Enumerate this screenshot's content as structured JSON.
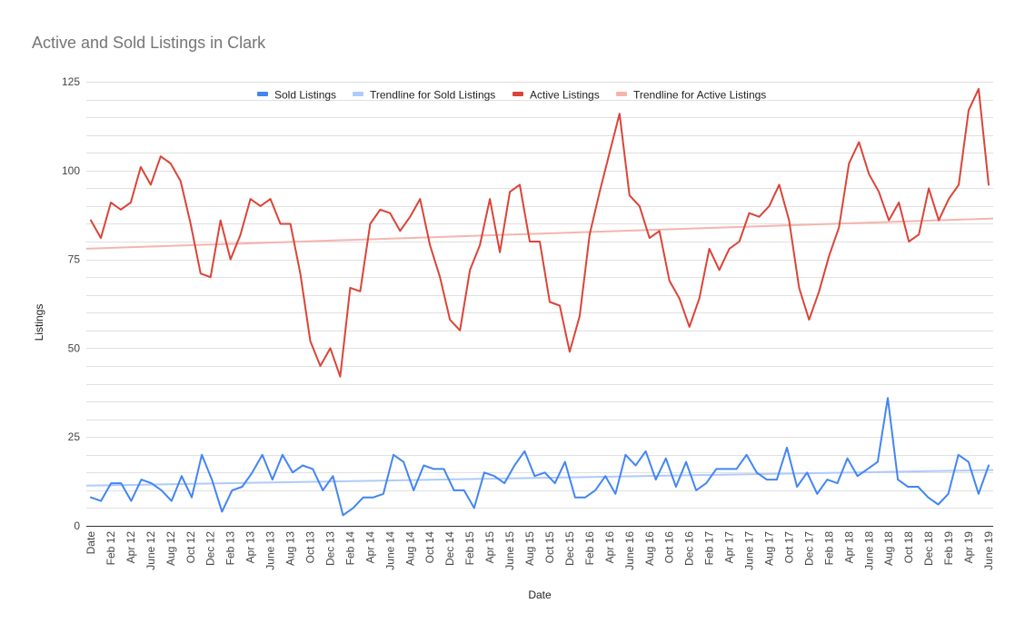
{
  "chart_data": {
    "type": "line",
    "title": "Active and Sold Listings in Clark",
    "xlabel": "Date",
    "ylabel": "Listings",
    "ylim": [
      0,
      125
    ],
    "yticks": [
      "0",
      "25",
      "50",
      "75",
      "100",
      "125"
    ],
    "grid": true,
    "legend_position": "top",
    "x_tick_labels": [
      "Date",
      "Feb 12",
      "Apr 12",
      "June 12",
      "Aug 12",
      "Oct 12",
      "Dec 12",
      "Feb 13",
      "Apr 13",
      "June 13",
      "Aug 13",
      "Oct 13",
      "Dec 13",
      "Feb 14",
      "Apr 14",
      "June 14",
      "Aug 14",
      "Oct 14",
      "Dec 14",
      "Feb 15",
      "Apr 15",
      "June 15",
      "Aug 15",
      "Oct 15",
      "Dec 15",
      "Feb 16",
      "Apr 16",
      "June 16",
      "Aug 16",
      "Oct 16",
      "Dec 16",
      "Feb 17",
      "Apr 17",
      "June 17",
      "Aug 17",
      "Oct 17",
      "Dec 17",
      "Feb 18",
      "Apr 18",
      "June 18",
      "Aug 18",
      "Oct 18",
      "Dec 18",
      "Feb 19",
      "Apr 19",
      "June 19"
    ],
    "series": [
      {
        "name": "Sold Listings",
        "color": "#4285f4",
        "values": [
          8,
          7,
          12,
          12,
          7,
          13,
          12,
          10,
          7,
          14,
          8,
          20,
          13,
          4,
          10,
          11,
          15,
          20,
          13,
          20,
          15,
          17,
          16,
          10,
          14,
          3,
          5,
          8,
          8,
          9,
          20,
          18,
          10,
          17,
          16,
          16,
          10,
          10,
          5,
          15,
          14,
          12,
          17,
          21,
          14,
          15,
          12,
          18,
          8,
          8,
          10,
          14,
          9,
          20,
          17,
          21,
          13,
          19,
          11,
          18,
          10,
          12,
          16,
          16,
          16,
          20,
          15,
          13,
          13,
          22,
          11,
          15,
          9,
          13,
          12,
          19,
          14,
          16,
          18,
          36,
          13,
          11,
          11,
          8,
          6,
          9,
          20,
          18,
          9,
          17
        ]
      },
      {
        "name": "Trendline for Sold Listings",
        "color": "#aecbfa",
        "trend": [
          11.3,
          15.7
        ]
      },
      {
        "name": "Active Listings",
        "color": "#db4437",
        "values": [
          86,
          81,
          91,
          89,
          91,
          101,
          96,
          104,
          102,
          97,
          85,
          71,
          70,
          86,
          75,
          82,
          92,
          90,
          92,
          85,
          85,
          71,
          52,
          45,
          50,
          42,
          67,
          66,
          85,
          89,
          88,
          83,
          87,
          92,
          79,
          70,
          58,
          55,
          72,
          79,
          92,
          77,
          94,
          96,
          80,
          80,
          63,
          62,
          49,
          59,
          82,
          94,
          105,
          116,
          93,
          90,
          81,
          83,
          69,
          64,
          56,
          64,
          78,
          72,
          78,
          80,
          88,
          87,
          90,
          96,
          86,
          67,
          58,
          66,
          76,
          84,
          102,
          108,
          99,
          94,
          86,
          91,
          80,
          82,
          95,
          86,
          92,
          96,
          117,
          123,
          96
        ]
      },
      {
        "name": "Trendline for Active Listings",
        "color": "#f4b5ae",
        "trend": [
          78,
          86.5
        ]
      }
    ]
  }
}
